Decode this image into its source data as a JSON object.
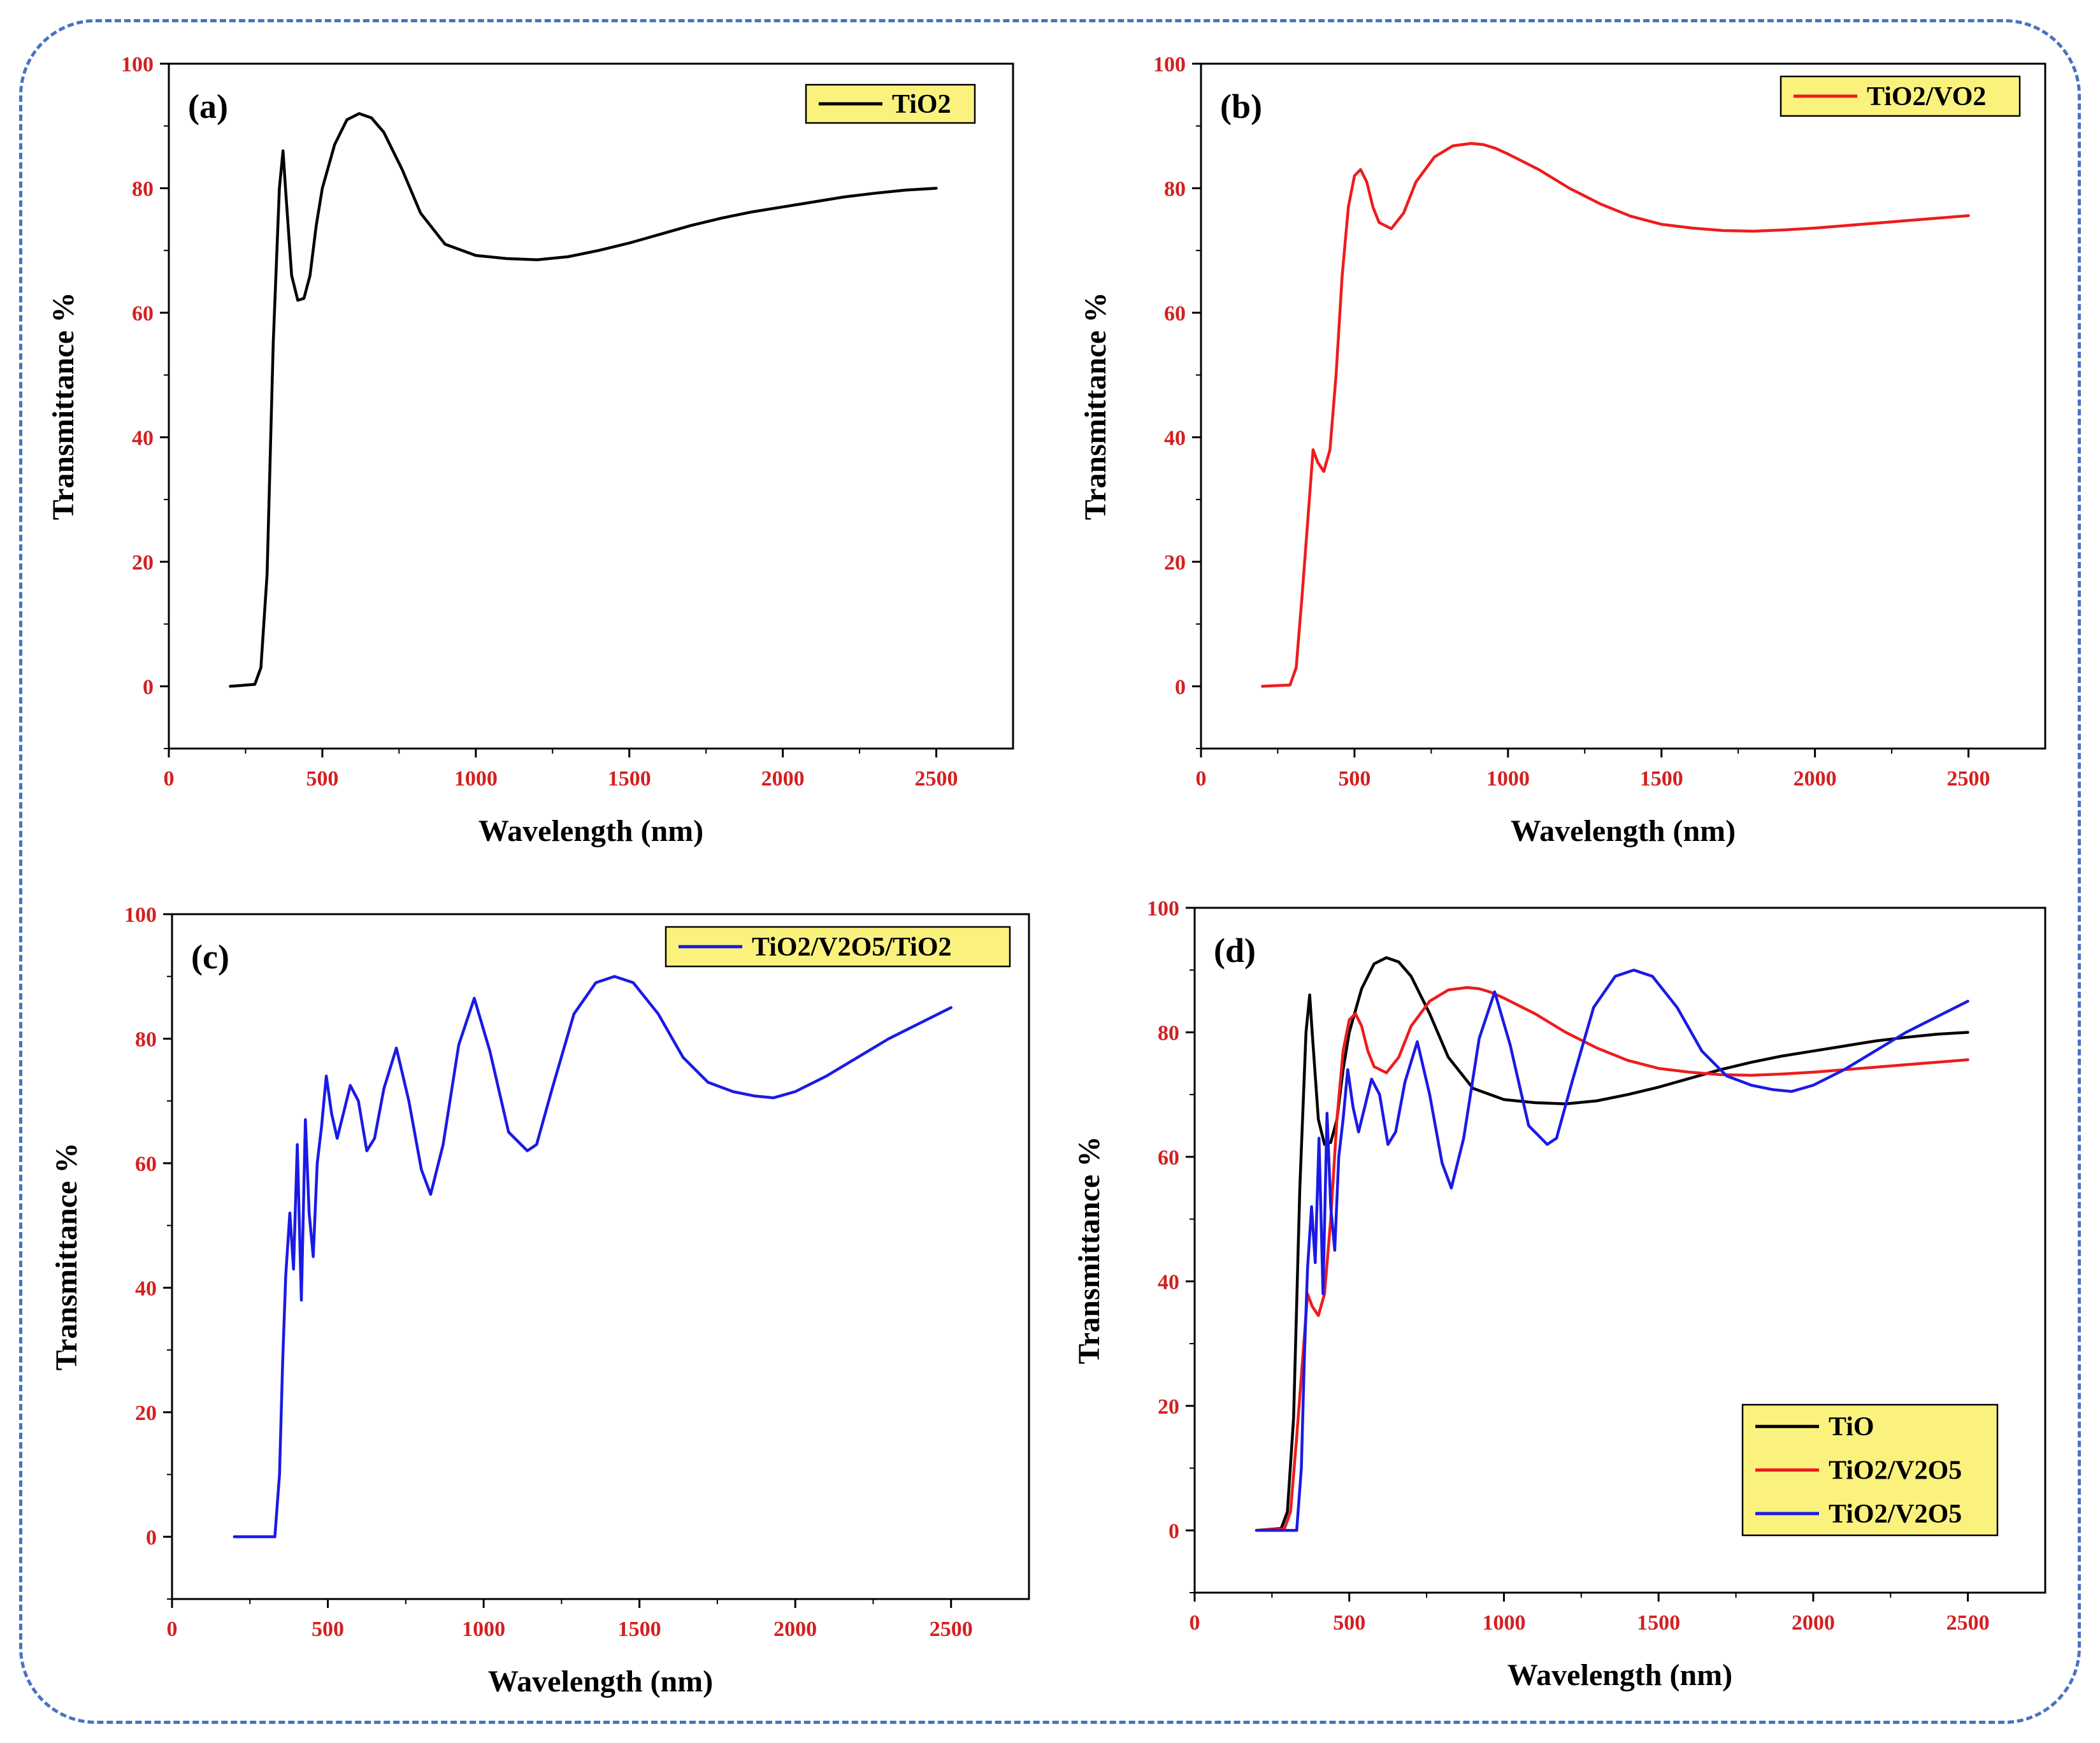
{
  "colors": {
    "tick_label": "#d32020",
    "legend_bg": "#fbf27e",
    "frame": "#4a72c0",
    "black": "#000000",
    "red": "#ee1c1c",
    "blue": "#1a1ae6"
  },
  "chart_data": [
    {
      "id": "a",
      "panel_label": "(a)",
      "type": "line",
      "xlabel": "Wavelength (nm)",
      "ylabel": "Transmittance %",
      "xlim": [
        0,
        2750
      ],
      "ylim": [
        -10,
        100
      ],
      "xticks": [
        0,
        500,
        1000,
        1500,
        2000,
        2500
      ],
      "xtick_labels": [
        "0",
        "500",
        "1000",
        "1500",
        "2000",
        "2500"
      ],
      "yticks": [
        0,
        20,
        40,
        60,
        80,
        100
      ],
      "ytick_labels": [
        "0",
        "20",
        "40",
        "60",
        "80",
        "100"
      ],
      "legend": {
        "position": "top-right"
      },
      "series": [
        {
          "name": "TiO2",
          "color": "#000000",
          "x": [
            200,
            280,
            300,
            320,
            340,
            360,
            372,
            380,
            400,
            420,
            440,
            460,
            480,
            500,
            540,
            580,
            620,
            660,
            700,
            760,
            820,
            900,
            1000,
            1100,
            1200,
            1300,
            1400,
            1500,
            1600,
            1700,
            1800,
            1900,
            2000,
            2100,
            2200,
            2300,
            2400,
            2500
          ],
          "y": [
            0,
            0.3,
            3,
            18,
            55,
            80,
            86,
            80,
            66,
            62,
            62.3,
            66,
            74,
            80,
            87,
            91,
            92,
            91.3,
            89,
            83,
            76,
            71,
            69.2,
            68.7,
            68.5,
            69,
            70,
            71.2,
            72.6,
            74,
            75.2,
            76.2,
            77,
            77.8,
            78.6,
            79.2,
            79.7,
            80
          ]
        }
      ]
    },
    {
      "id": "b",
      "panel_label": "(b)",
      "type": "line",
      "xlabel": "Wavelength (nm)",
      "ylabel": "Transmittance %",
      "xlim": [
        0,
        2750
      ],
      "ylim": [
        -10,
        100
      ],
      "xticks": [
        0,
        500,
        1000,
        1500,
        2000,
        2500
      ],
      "xtick_labels": [
        "0",
        "500",
        "1000",
        "1500",
        "2000",
        "2500"
      ],
      "yticks": [
        0,
        20,
        40,
        60,
        80,
        100
      ],
      "ytick_labels": [
        "0",
        "20",
        "40",
        "60",
        "80",
        "100"
      ],
      "legend": {
        "position": "top-right"
      },
      "series": [
        {
          "name": "TiO2/VO2",
          "color": "#ee1c1c",
          "x": [
            200,
            290,
            310,
            330,
            350,
            365,
            380,
            400,
            420,
            440,
            460,
            480,
            500,
            520,
            540,
            560,
            580,
            620,
            660,
            700,
            760,
            820,
            880,
            920,
            960,
            1000,
            1100,
            1200,
            1300,
            1400,
            1500,
            1600,
            1700,
            1800,
            1900,
            2000,
            2100,
            2200,
            2300,
            2400,
            2500
          ],
          "y": [
            0,
            0.2,
            3,
            15,
            28,
            38,
            36,
            34.5,
            38,
            50,
            66,
            77,
            82,
            83,
            81,
            77,
            74.5,
            73.5,
            76,
            81,
            85,
            86.8,
            87.2,
            87,
            86.4,
            85.5,
            83,
            80,
            77.5,
            75.5,
            74.2,
            73.6,
            73.2,
            73.1,
            73.3,
            73.6,
            74,
            74.4,
            74.8,
            75.2,
            75.6
          ]
        }
      ]
    },
    {
      "id": "c",
      "panel_label": "(c)",
      "type": "line",
      "xlabel": "Wavelength (nm)",
      "ylabel": "Transmittance %",
      "xlim": [
        0,
        2750
      ],
      "ylim": [
        -10,
        100
      ],
      "xticks": [
        0,
        500,
        1000,
        1500,
        2000,
        2500
      ],
      "xtick_labels": [
        "0",
        "500",
        "1000",
        "1500",
        "2000",
        "2500"
      ],
      "yticks": [
        0,
        20,
        40,
        60,
        80,
        100
      ],
      "ytick_labels": [
        "0",
        "20",
        "40",
        "60",
        "80",
        "100"
      ],
      "legend": {
        "position": "top-right"
      },
      "series": [
        {
          "name": "TiO2/V2O5/TiO2",
          "color": "#1a1ae6",
          "x": [
            200,
            330,
            345,
            355,
            365,
            378,
            390,
            402,
            415,
            428,
            440,
            453,
            466,
            480,
            495,
            512,
            530,
            550,
            572,
            598,
            625,
            650,
            680,
            720,
            760,
            800,
            830,
            870,
            920,
            970,
            1020,
            1080,
            1140,
            1170,
            1220,
            1290,
            1360,
            1420,
            1480,
            1560,
            1640,
            1720,
            1800,
            1870,
            1930,
            2000,
            2100,
            2200,
            2300,
            2400,
            2500
          ],
          "y": [
            0,
            0,
            10,
            28,
            42,
            52,
            43,
            63,
            38,
            67,
            52,
            45,
            60,
            66,
            74,
            68,
            64,
            68,
            72.5,
            70,
            62,
            64,
            72,
            78.5,
            70,
            59,
            55,
            63,
            79,
            86.5,
            78,
            65,
            62,
            63,
            72,
            84,
            89,
            90,
            89,
            84,
            77,
            73,
            71.5,
            70.8,
            70.5,
            71.5,
            74,
            77,
            80,
            82.5,
            85
          ]
        }
      ]
    },
    {
      "id": "d",
      "panel_label": "(d)",
      "type": "line",
      "xlabel": "Wavelength (nm)",
      "ylabel": "Transmittance %",
      "xlim": [
        0,
        2750
      ],
      "ylim": [
        -10,
        100
      ],
      "xticks": [
        0,
        500,
        1000,
        1500,
        2000,
        2500
      ],
      "xtick_labels": [
        "0",
        "500",
        "1000",
        "1500",
        "2000",
        "2500"
      ],
      "yticks": [
        0,
        20,
        40,
        60,
        80,
        100
      ],
      "ytick_labels": [
        "0",
        "20",
        "40",
        "60",
        "80",
        "100"
      ],
      "legend": {
        "position": "bottom-right"
      },
      "series": [
        {
          "name": "TiO",
          "color": "#000000",
          "x": [
            200,
            280,
            300,
            320,
            340,
            360,
            372,
            380,
            400,
            420,
            440,
            460,
            480,
            500,
            540,
            580,
            620,
            660,
            700,
            760,
            820,
            900,
            1000,
            1100,
            1200,
            1300,
            1400,
            1500,
            1600,
            1700,
            1800,
            1900,
            2000,
            2100,
            2200,
            2300,
            2400,
            2500
          ],
          "y": [
            0,
            0.3,
            3,
            18,
            55,
            80,
            86,
            80,
            66,
            62,
            62.3,
            66,
            74,
            80,
            87,
            91,
            92,
            91.3,
            89,
            83,
            76,
            71,
            69.2,
            68.7,
            68.5,
            69,
            70,
            71.2,
            72.6,
            74,
            75.2,
            76.2,
            77,
            77.8,
            78.6,
            79.2,
            79.7,
            80
          ]
        },
        {
          "name": "TiO2/V2O5",
          "color": "#ee1c1c",
          "x": [
            200,
            290,
            310,
            330,
            350,
            365,
            380,
            400,
            420,
            440,
            460,
            480,
            500,
            520,
            540,
            560,
            580,
            620,
            660,
            700,
            760,
            820,
            880,
            920,
            960,
            1000,
            1100,
            1200,
            1300,
            1400,
            1500,
            1600,
            1700,
            1800,
            1900,
            2000,
            2100,
            2200,
            2300,
            2400,
            2500
          ],
          "y": [
            0,
            0.2,
            3,
            15,
            28,
            38,
            36,
            34.5,
            38,
            50,
            66,
            77,
            82,
            83,
            81,
            77,
            74.5,
            73.5,
            76,
            81,
            85,
            86.8,
            87.2,
            87,
            86.4,
            85.5,
            83,
            80,
            77.5,
            75.5,
            74.2,
            73.6,
            73.2,
            73.1,
            73.3,
            73.6,
            74,
            74.4,
            74.8,
            75.2,
            75.6
          ]
        },
        {
          "name": "TiO2/V2O5",
          "color": "#1a1ae6",
          "x": [
            200,
            330,
            345,
            355,
            365,
            378,
            390,
            402,
            415,
            428,
            440,
            453,
            466,
            480,
            495,
            512,
            530,
            550,
            572,
            598,
            625,
            650,
            680,
            720,
            760,
            800,
            830,
            870,
            920,
            970,
            1020,
            1080,
            1140,
            1170,
            1220,
            1290,
            1360,
            1420,
            1480,
            1560,
            1640,
            1720,
            1800,
            1870,
            1930,
            2000,
            2100,
            2200,
            2300,
            2400,
            2500
          ],
          "y": [
            0,
            0,
            10,
            28,
            42,
            52,
            43,
            63,
            38,
            67,
            52,
            45,
            60,
            66,
            74,
            68,
            64,
            68,
            72.5,
            70,
            62,
            64,
            72,
            78.5,
            70,
            59,
            55,
            63,
            79,
            86.5,
            78,
            65,
            62,
            63,
            72,
            84,
            89,
            90,
            89,
            84,
            77,
            73,
            71.5,
            70.8,
            70.5,
            71.5,
            74,
            77,
            80,
            82.5,
            85
          ]
        }
      ]
    }
  ]
}
